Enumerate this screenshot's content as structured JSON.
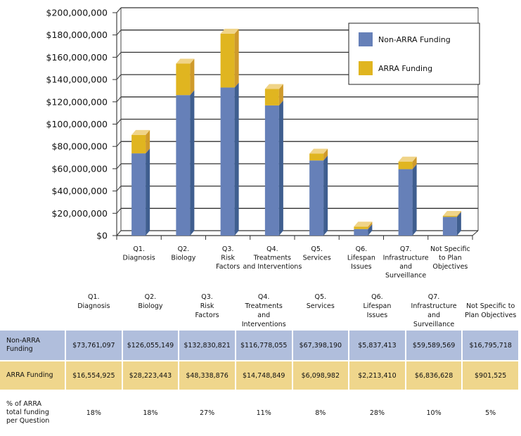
{
  "chart_data": {
    "type": "bar",
    "stacked": true,
    "style": "3d-column",
    "title": "",
    "xlabel": "",
    "ylabel": "",
    "ylim": [
      0,
      200000000
    ],
    "ytick_step": 20000000,
    "ytick_labels": [
      "$0",
      "$20,000,000",
      "$40,000,000",
      "$60,000,000",
      "$80,000,000",
      "$100,000,000",
      "$120,000,000",
      "$140,000,000",
      "$160,000,000",
      "$180,000,000",
      "$200,000,000"
    ],
    "grid": true,
    "legend_position": "top-right",
    "categories": [
      [
        "Q1.",
        "Diagnosis"
      ],
      [
        "Q2.",
        "Biology"
      ],
      [
        "Q3.",
        "Risk",
        "Factors"
      ],
      [
        "Q4.",
        "Treatments",
        "and Interventions"
      ],
      [
        "Q5.",
        "Services"
      ],
      [
        "Q6.",
        "Lifespan",
        "Issues"
      ],
      [
        "Q7.",
        "Infrastructure",
        "and",
        "Surveillance"
      ],
      [
        "Not Specific",
        "to Plan",
        "Objectives"
      ]
    ],
    "series": [
      {
        "name": "Non-ARRA Funding",
        "color": "#6680b8",
        "side_color": "#3f5e8f",
        "top_color": "#8fa3cf",
        "values": [
          73761097,
          126055149,
          132830821,
          116778055,
          67398190,
          5837413,
          59589569,
          16795718
        ]
      },
      {
        "name": "ARRA Funding",
        "color": "#e0b520",
        "side_color": "#cf9a2b",
        "top_color": "#f0d488",
        "values": [
          16554925,
          28223443,
          48338876,
          14748849,
          6098982,
          2213410,
          6836628,
          901525
        ]
      }
    ]
  },
  "table": {
    "headers": [
      [
        "Q1.",
        "Diagnosis"
      ],
      [
        "Q2.",
        "Biology"
      ],
      [
        "Q3.",
        "Risk",
        "Factors"
      ],
      [
        "Q4.",
        "Treatments",
        "and Interventions"
      ],
      [
        "Q5.",
        "Services"
      ],
      [
        "Q6.",
        "Lifespan",
        "Issues"
      ],
      [
        "Q7.",
        "Infrastructure",
        "and Surveillance"
      ],
      [
        "",
        "Not Specific to",
        "Plan Objectives"
      ]
    ],
    "rows": [
      {
        "label": [
          "Non-ARRA",
          "Funding"
        ],
        "color": "#b0bedc",
        "values": [
          "$73,761,097",
          "$126,055,149",
          "$132,830,821",
          "$116,778,055",
          "$67,398,190",
          "$5,837,413",
          "$59,589,569",
          "$16,795,718"
        ]
      },
      {
        "label": [
          "ARRA Funding"
        ],
        "color": "#efd68c",
        "values": [
          "$16,554,925",
          "$28,223,443",
          "$48,338,876",
          "$14,748,849",
          "$6,098,982",
          "$2,213,410",
          "$6,836,628",
          "$901,525"
        ]
      },
      {
        "label": [
          "% of ARRA",
          "total funding",
          "per Question"
        ],
        "color": "#ffffff",
        "values": [
          "18%",
          "18%",
          "27%",
          "11%",
          "8%",
          "28%",
          "10%",
          "5%"
        ]
      }
    ]
  }
}
